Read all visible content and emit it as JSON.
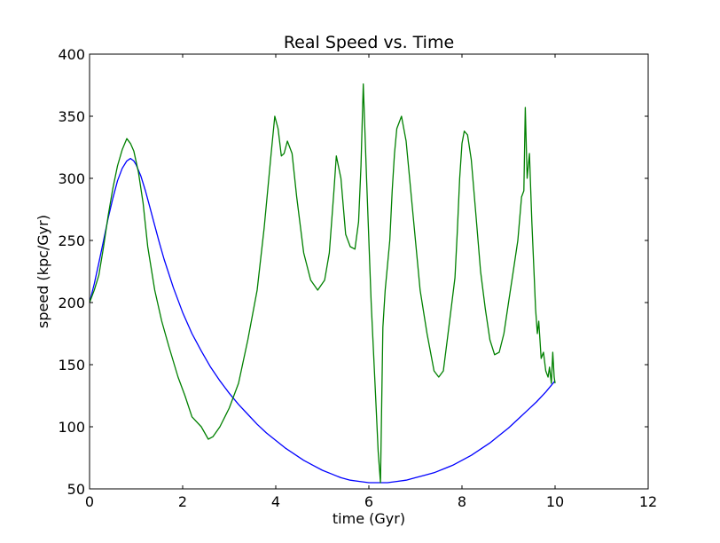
{
  "chart_data": {
    "type": "line",
    "title": "Real Speed vs. Time",
    "xlabel": "time (Gyr)",
    "ylabel": "speed (kpc/Gyr)",
    "xlim": [
      0,
      12
    ],
    "ylim": [
      50,
      400
    ],
    "xticks": [
      0,
      2,
      4,
      6,
      8,
      10,
      12
    ],
    "yticks": [
      50,
      100,
      150,
      200,
      250,
      300,
      350,
      400
    ],
    "grid": false,
    "legend": "none",
    "series": [
      {
        "color": "#0000ff",
        "x": [
          0.0,
          0.1,
          0.2,
          0.3,
          0.4,
          0.5,
          0.6,
          0.7,
          0.8,
          0.88,
          0.95,
          1.0,
          1.1,
          1.2,
          1.3,
          1.4,
          1.5,
          1.6,
          1.8,
          2.0,
          2.2,
          2.4,
          2.6,
          2.8,
          3.0,
          3.2,
          3.4,
          3.6,
          3.8,
          4.0,
          4.2,
          4.4,
          4.6,
          4.8,
          5.0,
          5.2,
          5.4,
          5.6,
          5.8,
          6.0,
          6.2,
          6.4,
          6.6,
          6.8,
          7.0,
          7.2,
          7.4,
          7.6,
          7.8,
          8.0,
          8.2,
          8.4,
          8.6,
          8.8,
          9.0,
          9.2,
          9.4,
          9.6,
          9.8,
          10.0
        ],
        "y": [
          200,
          215,
          232,
          250,
          268,
          284,
          298,
          308,
          314,
          316,
          314,
          311,
          302,
          290,
          276,
          262,
          248,
          235,
          212,
          192,
          175,
          161,
          148,
          137,
          127,
          118,
          110,
          102,
          95,
          89,
          83,
          78,
          73,
          69,
          65,
          62,
          59,
          57,
          56,
          55,
          55,
          55,
          56,
          57,
          59,
          61,
          63,
          66,
          69,
          73,
          77,
          82,
          87,
          93,
          99,
          106,
          113,
          120,
          128,
          137
        ]
      },
      {
        "color": "#008000",
        "x": [
          0.0,
          0.1,
          0.2,
          0.3,
          0.4,
          0.5,
          0.6,
          0.7,
          0.8,
          0.88,
          0.95,
          1.05,
          1.15,
          1.25,
          1.4,
          1.55,
          1.7,
          1.9,
          2.05,
          2.2,
          2.4,
          2.55,
          2.65,
          2.8,
          3.0,
          3.2,
          3.4,
          3.6,
          3.75,
          3.9,
          3.98,
          4.05,
          4.12,
          4.18,
          4.25,
          4.35,
          4.45,
          4.6,
          4.75,
          4.9,
          5.05,
          5.15,
          5.25,
          5.3,
          5.4,
          5.5,
          5.6,
          5.7,
          5.78,
          5.83,
          5.88,
          5.95,
          6.05,
          6.15,
          6.2,
          6.25,
          6.3,
          6.35,
          6.4,
          6.45,
          6.5,
          6.55,
          6.6,
          6.7,
          6.8,
          6.95,
          7.1,
          7.25,
          7.4,
          7.5,
          7.6,
          7.7,
          7.8,
          7.85,
          7.9,
          7.95,
          8.0,
          8.05,
          8.12,
          8.2,
          8.3,
          8.4,
          8.5,
          8.6,
          8.7,
          8.8,
          8.9,
          9.0,
          9.1,
          9.2,
          9.28,
          9.33,
          9.36,
          9.4,
          9.45,
          9.5,
          9.55,
          9.58,
          9.62,
          9.65,
          9.7,
          9.75,
          9.8,
          9.85,
          9.88,
          9.92,
          9.95,
          9.98,
          10.0
        ],
        "y": [
          200,
          210,
          222,
          245,
          270,
          292,
          310,
          323,
          332,
          328,
          322,
          305,
          280,
          245,
          210,
          185,
          165,
          140,
          125,
          108,
          100,
          90,
          92,
          100,
          115,
          135,
          170,
          210,
          260,
          320,
          350,
          340,
          318,
          320,
          330,
          320,
          285,
          240,
          218,
          210,
          218,
          240,
          290,
          318,
          300,
          255,
          245,
          243,
          265,
          310,
          376,
          300,
          200,
          120,
          80,
          55,
          180,
          210,
          230,
          250,
          290,
          320,
          340,
          350,
          330,
          270,
          210,
          175,
          145,
          140,
          145,
          175,
          205,
          220,
          258,
          300,
          328,
          338,
          335,
          315,
          270,
          225,
          195,
          170,
          158,
          160,
          175,
          200,
          225,
          250,
          285,
          290,
          357,
          300,
          320,
          265,
          222,
          195,
          175,
          185,
          155,
          160,
          145,
          140,
          148,
          135,
          160,
          140,
          135
        ]
      }
    ]
  }
}
